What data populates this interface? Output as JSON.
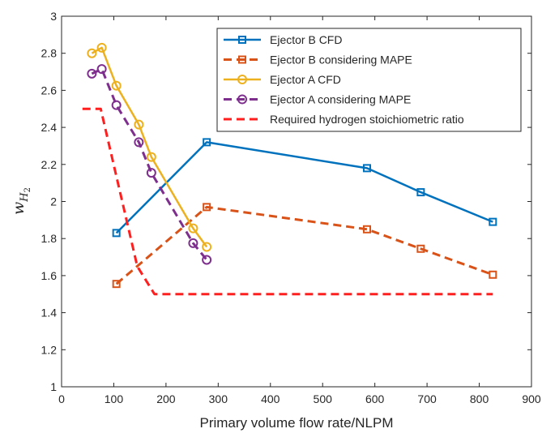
{
  "chart_data": {
    "type": "line",
    "xlabel": "Primary volume flow rate/NLPM",
    "ylabel": "w",
    "ylabel_sub1": "H",
    "ylabel_sub2": "2",
    "xlim": [
      0,
      900
    ],
    "ylim": [
      1,
      3
    ],
    "xticks": [
      0,
      100,
      200,
      300,
      400,
      500,
      600,
      700,
      800,
      900
    ],
    "yticks": [
      1,
      1.2,
      1.4,
      1.6,
      1.8,
      2,
      2.2,
      2.4,
      2.6,
      2.8,
      3
    ],
    "ytick_labels": [
      "1",
      "1.2",
      "1.4",
      "1.6",
      "1.8",
      "2",
      "2.2",
      "2.4",
      "2.6",
      "2.8",
      "3"
    ],
    "grid": false,
    "legend_position": "top-right",
    "series": [
      {
        "name": "Ejector B CFD",
        "color": "#0072BD",
        "line": "solid",
        "marker": "square",
        "points": [
          [
            105,
            1.83
          ],
          [
            278,
            2.32
          ],
          [
            585,
            2.18
          ],
          [
            688,
            2.05
          ],
          [
            826,
            1.89
          ]
        ]
      },
      {
        "name": "Ejector B considering MAPE",
        "color": "#D95319",
        "line": "dashed",
        "marker": "square",
        "points": [
          [
            105,
            1.555
          ],
          [
            278,
            1.97
          ],
          [
            585,
            1.85
          ],
          [
            688,
            1.745
          ],
          [
            826,
            1.605
          ]
        ]
      },
      {
        "name": "Ejector A CFD",
        "color": "#EDB120",
        "line": "solid",
        "marker": "circle",
        "points": [
          [
            58,
            2.8
          ],
          [
            77,
            2.83
          ],
          [
            105,
            2.625
          ],
          [
            148,
            2.415
          ],
          [
            172,
            2.24
          ],
          [
            252,
            1.855
          ],
          [
            278,
            1.755
          ]
        ]
      },
      {
        "name": "Ejector A considering MAPE",
        "color": "#7E2F8E",
        "line": "dashed",
        "marker": "circle",
        "points": [
          [
            58,
            2.69
          ],
          [
            77,
            2.715
          ],
          [
            105,
            2.52
          ],
          [
            148,
            2.32
          ],
          [
            172,
            2.155
          ],
          [
            252,
            1.775
          ],
          [
            278,
            1.685
          ]
        ]
      },
      {
        "name": "Required hydrogen stoichiometric ratio",
        "color": "#FF1F1F",
        "line": "dashed",
        "marker": "none",
        "points": [
          [
            40,
            2.5
          ],
          [
            75,
            2.5
          ],
          [
            145,
            1.65
          ],
          [
            178,
            1.5
          ],
          [
            826,
            1.5
          ]
        ]
      }
    ]
  }
}
